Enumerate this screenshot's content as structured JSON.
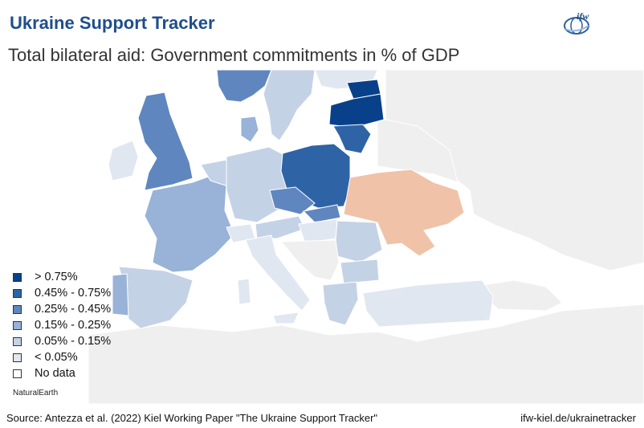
{
  "header": {
    "title": "Ukraine Support Tracker",
    "subtitle": "Total bilateral aid: Government commitments in % of GDP",
    "logo_text": "ifw"
  },
  "legend": {
    "items": [
      {
        "label": "> 0.75%",
        "color": "#08418a"
      },
      {
        "label": "0.45% - 0.75%",
        "color": "#2e64a6"
      },
      {
        "label": "0.25% - 0.45%",
        "color": "#5f86bf"
      },
      {
        "label": "0.15% - 0.25%",
        "color": "#98b2d8"
      },
      {
        "label": "0.05% - 0.15%",
        "color": "#c4d2e6"
      },
      {
        "label": "< 0.05%",
        "color": "#e0e7f1"
      },
      {
        "label": "No data",
        "color": "#ffffff"
      }
    ]
  },
  "map_credit": "NaturalEarth",
  "footer": {
    "source": "Source: Antezza et al. (2022) Kiel Working Paper \"The Ukraine Support Tracker\"",
    "url": "ifw-kiel.de/ukrainetracker"
  },
  "colors": {
    "title": "#1f4e8c",
    "sea": "#ffffff",
    "no_data_land": "#efefef",
    "ukraine": "#f0c2a8",
    "border": "#ffffff"
  }
}
